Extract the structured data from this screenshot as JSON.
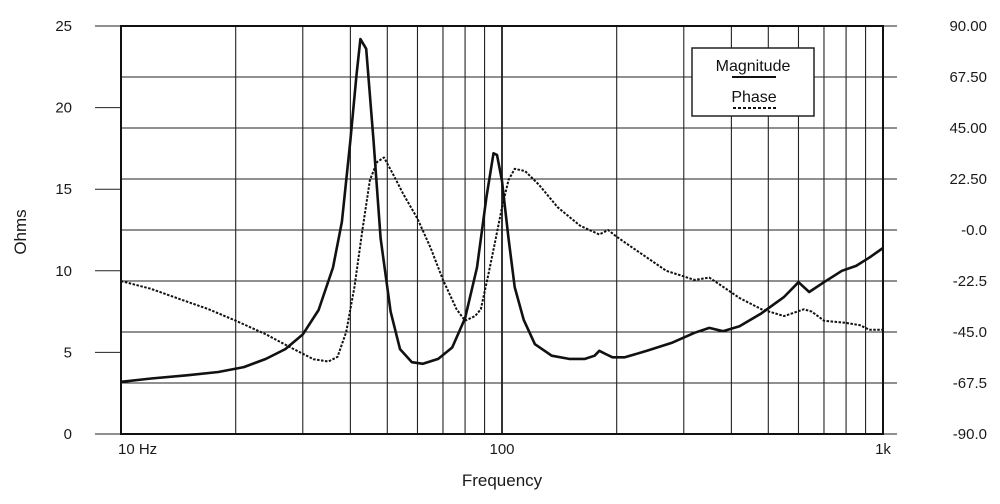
{
  "chart_data": {
    "type": "line",
    "xlabel": "Frequency",
    "ylabel": "Ohms",
    "x_scale": "log",
    "xlim": [
      10,
      1000
    ],
    "x_tick_labels": [
      {
        "value": 10,
        "label": "10  Hz"
      },
      {
        "value": 100,
        "label": "100"
      },
      {
        "value": 1000,
        "label": "1k"
      }
    ],
    "ylim": [
      0,
      25
    ],
    "y_ticks": [
      0,
      5,
      10,
      15,
      20,
      25
    ],
    "y2lim": [
      -90,
      90
    ],
    "y2_tick_labels": [
      "90.00",
      "67.50",
      "45.00",
      "22.50",
      "-0.0",
      "-22.5",
      "-45.0",
      "-67.5",
      "-90.0"
    ],
    "grid": true,
    "legend": {
      "position": "top-right",
      "entries": [
        {
          "label": "Magnitude",
          "style": "solid"
        },
        {
          "label": "Phase",
          "style": "dashed"
        }
      ]
    },
    "series": [
      {
        "name": "Magnitude",
        "axis": "left",
        "style": "solid",
        "points": [
          [
            10,
            3.2
          ],
          [
            12,
            3.4
          ],
          [
            15,
            3.6
          ],
          [
            18,
            3.8
          ],
          [
            21,
            4.1
          ],
          [
            24,
            4.6
          ],
          [
            27,
            5.2
          ],
          [
            30,
            6.1
          ],
          [
            33,
            7.6
          ],
          [
            36,
            10.2
          ],
          [
            38,
            13
          ],
          [
            40,
            18
          ],
          [
            41.5,
            22
          ],
          [
            42.5,
            24.2
          ],
          [
            44,
            23.6
          ],
          [
            46,
            18
          ],
          [
            48,
            12
          ],
          [
            51,
            7.5
          ],
          [
            54,
            5.2
          ],
          [
            58,
            4.4
          ],
          [
            62,
            4.3
          ],
          [
            68,
            4.6
          ],
          [
            74,
            5.3
          ],
          [
            80,
            7.1
          ],
          [
            86,
            10.2
          ],
          [
            91,
            14.5
          ],
          [
            95,
            17.2
          ],
          [
            97,
            17.1
          ],
          [
            100,
            15.5
          ],
          [
            104,
            12
          ],
          [
            108,
            9
          ],
          [
            114,
            7
          ],
          [
            122,
            5.5
          ],
          [
            135,
            4.8
          ],
          [
            150,
            4.6
          ],
          [
            165,
            4.6
          ],
          [
            175,
            4.8
          ],
          [
            180,
            5.1
          ],
          [
            187,
            4.9
          ],
          [
            195,
            4.7
          ],
          [
            210,
            4.7
          ],
          [
            240,
            5.1
          ],
          [
            280,
            5.6
          ],
          [
            320,
            6.2
          ],
          [
            350,
            6.5
          ],
          [
            380,
            6.3
          ],
          [
            420,
            6.6
          ],
          [
            480,
            7.4
          ],
          [
            550,
            8.4
          ],
          [
            600,
            9.3
          ],
          [
            640,
            8.7
          ],
          [
            700,
            9.3
          ],
          [
            780,
            10
          ],
          [
            850,
            10.3
          ],
          [
            920,
            10.8
          ],
          [
            1000,
            11.4
          ]
        ]
      },
      {
        "name": "Phase",
        "axis": "right",
        "style": "dashed",
        "points": [
          [
            10,
            -22.5
          ],
          [
            12,
            -26
          ],
          [
            14,
            -30
          ],
          [
            17,
            -35
          ],
          [
            20,
            -40
          ],
          [
            24,
            -46
          ],
          [
            28,
            -52
          ],
          [
            32,
            -57
          ],
          [
            35,
            -58
          ],
          [
            37,
            -56
          ],
          [
            39,
            -45
          ],
          [
            41,
            -25
          ],
          [
            43,
            0
          ],
          [
            45,
            22
          ],
          [
            47,
            30
          ],
          [
            49,
            32
          ],
          [
            52,
            24
          ],
          [
            55,
            16
          ],
          [
            60,
            5
          ],
          [
            65,
            -8
          ],
          [
            70,
            -22
          ],
          [
            76,
            -35
          ],
          [
            80,
            -40
          ],
          [
            85,
            -38
          ],
          [
            88,
            -35
          ],
          [
            92,
            -20
          ],
          [
            96,
            -5
          ],
          [
            100,
            10
          ],
          [
            104,
            22
          ],
          [
            108,
            27
          ],
          [
            115,
            26
          ],
          [
            125,
            20
          ],
          [
            140,
            10
          ],
          [
            160,
            2
          ],
          [
            180,
            -2
          ],
          [
            190,
            0
          ],
          [
            200,
            -3
          ],
          [
            230,
            -10
          ],
          [
            270,
            -18
          ],
          [
            320,
            -22
          ],
          [
            350,
            -21
          ],
          [
            380,
            -25
          ],
          [
            420,
            -30
          ],
          [
            480,
            -35
          ],
          [
            550,
            -38
          ],
          [
            620,
            -35
          ],
          [
            650,
            -36
          ],
          [
            700,
            -40
          ],
          [
            800,
            -41
          ],
          [
            870,
            -42
          ],
          [
            920,
            -44
          ],
          [
            1000,
            -44
          ]
        ]
      }
    ]
  }
}
